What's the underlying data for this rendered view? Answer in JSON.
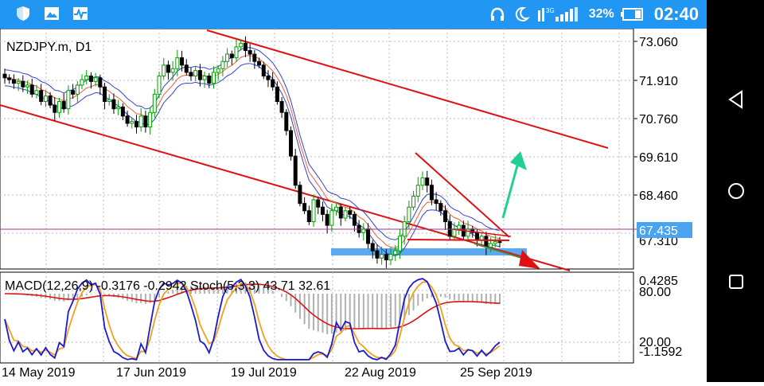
{
  "status_bar": {
    "battery_percent": "32%",
    "time": "02:40",
    "network": "3G",
    "icons": [
      "shield-icon",
      "image-icon",
      "activity-icon",
      "headphones-icon",
      "moon-icon",
      "signal-icon",
      "battery-icon"
    ]
  },
  "nav_bar": {
    "icons": [
      "back-icon",
      "home-icon",
      "recents-icon"
    ]
  },
  "chart": {
    "title": "NZDJPY.m, D1",
    "price_labels": [
      "73.060",
      "71.910",
      "70.760",
      "69.610",
      "68.460"
    ],
    "current_price": "67.435",
    "partial_price": "67.310",
    "indicator_label": "MACD(12,26,9) -0.3176 -0.2942 Stoch(5,3,3) 43.71 32.61",
    "indicator_scale": [
      "0.4285",
      "80.00",
      "20.00",
      "-1.1592"
    ],
    "dates": [
      "14 May 2019",
      "17 Jun 2019",
      "19 Jul 2019",
      "22 Aug 2019",
      "25 Sep 2019"
    ],
    "colors": {
      "up_candle": "#00a000",
      "down_candle": "#000000",
      "channel": "#dd1111",
      "ma_red": "#e86040",
      "ma_blue": "#3344cc",
      "price_line": "#9b3a8f",
      "price_tag": "#4aa3f0",
      "support_zone": "#5aaaf0",
      "green_arrow": "#20d090",
      "stoch_main": "#1a1ad0",
      "stoch_signal": "#f0a020",
      "macd_signal": "#dd1111",
      "macd_hist": "#b0b0b0"
    }
  },
  "chart_data": {
    "type": "candlestick",
    "symbol": "NZDJPY.m",
    "timeframe": "D1",
    "ylim": [
      66.7,
      73.3
    ],
    "current_price": 67.435,
    "closes": [
      71.95,
      71.9,
      71.8,
      71.85,
      71.7,
      71.75,
      71.5,
      71.6,
      71.3,
      71.45,
      71.2,
      71.0,
      71.3,
      71.1,
      71.6,
      71.5,
      71.75,
      71.9,
      72.0,
      71.85,
      71.95,
      71.7,
      71.3,
      71.35,
      71.1,
      71.15,
      70.9,
      70.7,
      70.75,
      70.6,
      70.9,
      70.6,
      71.0,
      71.5,
      72.0,
      72.3,
      72.1,
      72.2,
      72.5,
      72.3,
      72.1,
      72.0,
      72.15,
      71.9,
      72.0,
      71.8,
      72.1,
      72.2,
      72.4,
      72.6,
      72.5,
      72.8,
      72.9,
      72.7,
      72.6,
      72.4,
      72.3,
      72.0,
      71.9,
      71.7,
      71.3,
      71.0,
      70.5,
      69.8,
      69.0,
      68.5,
      68.3,
      68.0,
      68.6,
      68.4,
      68.2,
      67.9,
      68.3,
      68.4,
      68.1,
      68.3,
      68.2,
      67.9,
      67.7,
      67.8,
      67.4,
      67.2,
      67.0,
      67.1,
      66.95,
      67.1,
      67.2,
      67.6,
      68.0,
      68.4,
      68.7,
      69.0,
      69.2,
      69.0,
      68.6,
      68.5,
      68.3,
      68.0,
      67.6,
      67.8,
      67.9,
      67.6,
      67.8,
      67.7,
      67.5,
      67.6,
      67.3,
      67.4,
      67.45,
      67.435
    ]
  }
}
